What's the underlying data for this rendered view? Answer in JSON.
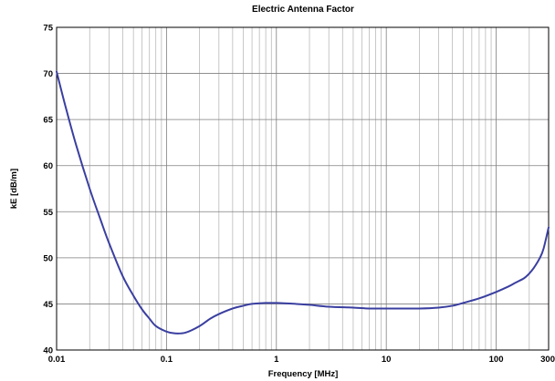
{
  "chart_data": {
    "type": "line",
    "title": "Electric Antenna Factor",
    "xlabel": "Frequency [MHz]",
    "ylabel": "kE [dB/m]",
    "xscale": "log",
    "xlim": [
      0.01,
      300
    ],
    "ylim": [
      40,
      75
    ],
    "grid": true,
    "x_ticks": [
      0.01,
      0.1,
      1,
      10,
      100,
      300
    ],
    "x_tick_labels": [
      "0.01",
      "0.1",
      "1",
      "10",
      "100",
      "300"
    ],
    "y_ticks": [
      40,
      45,
      50,
      55,
      60,
      65,
      70,
      75
    ],
    "y_tick_labels": [
      "40",
      "45",
      "50",
      "55",
      "60",
      "65",
      "70",
      "75"
    ],
    "line_color": "#3a3fa0",
    "series": [
      {
        "x": [
          0.01,
          0.012,
          0.015,
          0.02,
          0.025,
          0.03,
          0.04,
          0.05,
          0.06,
          0.07,
          0.08,
          0.1,
          0.12,
          0.15,
          0.2,
          0.25,
          0.3,
          0.4,
          0.5,
          0.6,
          0.8,
          1,
          1.5,
          2,
          3,
          5,
          7,
          10,
          15,
          20,
          30,
          40,
          50,
          70,
          100,
          130,
          150,
          180,
          200,
          220,
          250,
          270,
          300
        ],
        "y": [
          70.2,
          66.5,
          62.3,
          57.5,
          54.2,
          51.6,
          48.0,
          45.9,
          44.4,
          43.4,
          42.6,
          42.0,
          41.8,
          41.9,
          42.6,
          43.4,
          43.9,
          44.5,
          44.8,
          45.0,
          45.1,
          45.1,
          45.0,
          44.9,
          44.7,
          44.6,
          44.5,
          44.5,
          44.5,
          44.5,
          44.6,
          44.8,
          45.1,
          45.6,
          46.3,
          46.9,
          47.3,
          47.8,
          48.3,
          48.9,
          50.0,
          51.0,
          53.3
        ]
      }
    ]
  }
}
